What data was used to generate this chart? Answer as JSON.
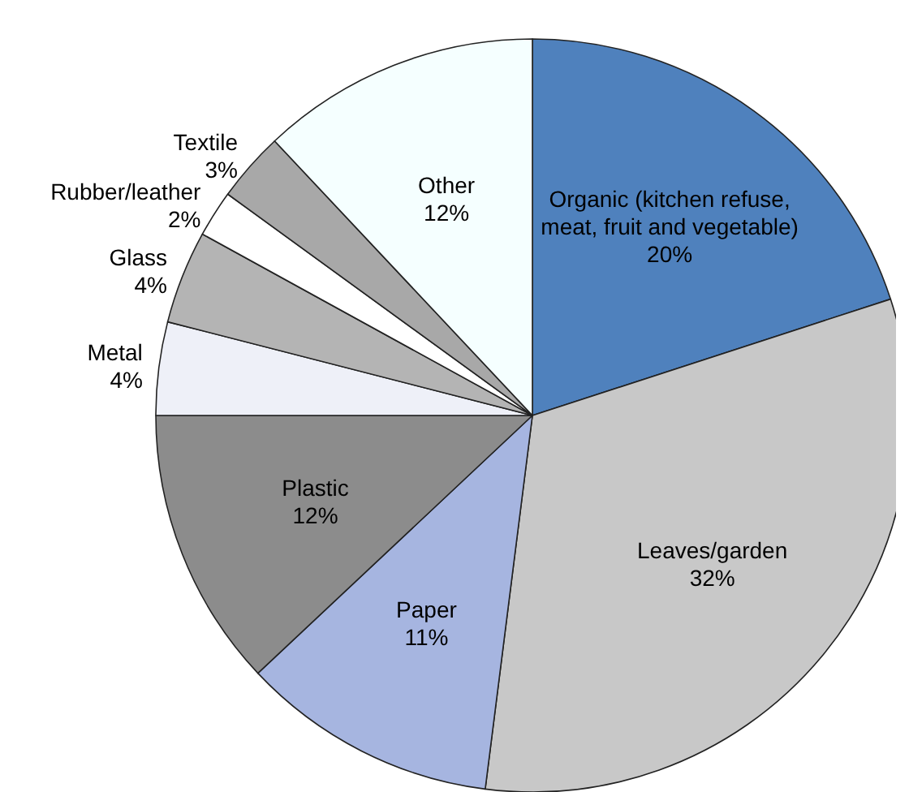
{
  "chart_data": {
    "type": "pie",
    "categories": [
      "Organic (kitchen refuse, meat, fruit and vegetable)",
      "Leaves/garden",
      "Paper",
      "Plastic",
      "Metal",
      "Glass",
      "Rubber/leather",
      "Textile",
      "Other"
    ],
    "values": [
      20,
      32,
      11,
      12,
      4,
      4,
      2,
      3,
      12
    ],
    "colors": [
      "#4f81bd",
      "#c8c8c8",
      "#a6b5e0",
      "#8c8c8c",
      "#eef0f8",
      "#b4b4b4",
      "#ffffff",
      "#a8a8a8",
      "#f5ffff"
    ],
    "value_labels": [
      "20%",
      "32%",
      "11%",
      "12%",
      "4%",
      "4%",
      "2%",
      "3%",
      "12%"
    ]
  }
}
